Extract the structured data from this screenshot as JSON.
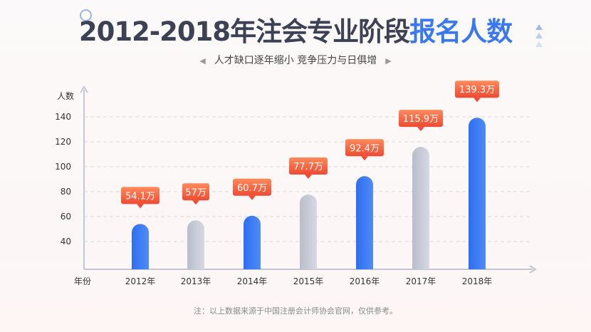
{
  "header": {
    "title_main": "2012-2018年注会专业阶段",
    "title_highlight": "报名人数",
    "subtitle": "人才缺口逐年缩小 竞争压力与日俱增",
    "arrow_left": "◀",
    "arrow_right": "▶"
  },
  "footnote": "注：以上数据来源于中国注册会计师协会官网，仅供参考。",
  "colors": {
    "blue": "#3a78ee",
    "gray": "#c5c9d6",
    "label": "#f05a3c",
    "title": "#3d4154"
  },
  "chart_data": {
    "type": "bar",
    "title": "2012-2018年注会专业阶段报名人数",
    "xlabel": "年份",
    "ylabel": "人数",
    "categories": [
      "2012年",
      "2013年",
      "2014年",
      "2015年",
      "2016年",
      "2017年",
      "2018年"
    ],
    "values": [
      54.1,
      57,
      60.7,
      77.7,
      92.4,
      115.9,
      139.3
    ],
    "data_labels": [
      "54.1万",
      "57万",
      "60.7万",
      "77.7万",
      "92.4万",
      "115.9万",
      "139.3万"
    ],
    "bar_colors": [
      "blue",
      "gray",
      "blue",
      "gray",
      "blue",
      "gray",
      "blue"
    ],
    "yticks": [
      40,
      60,
      80,
      100,
      120,
      140
    ],
    "ylim": [
      18,
      160
    ],
    "grid": true,
    "unit": "万"
  }
}
